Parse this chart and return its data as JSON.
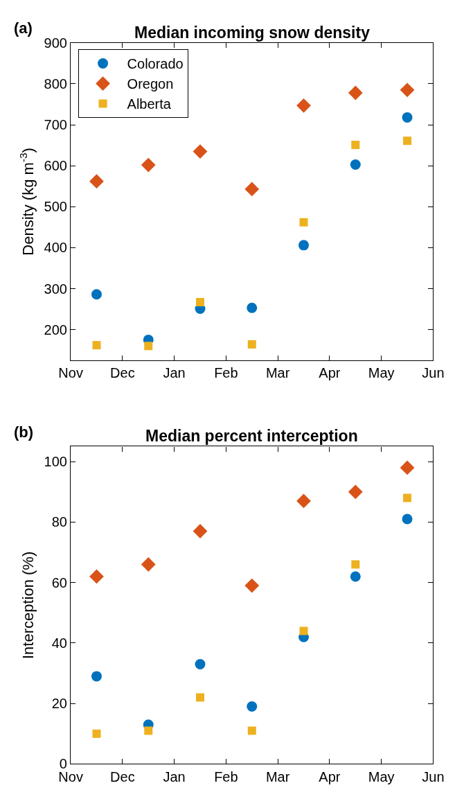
{
  "chart_data": [
    {
      "type": "scatter",
      "title": "Median incoming snow density",
      "ylabel": "Density (kg m$^{-3}$)",
      "annotations": [
        "(a)"
      ],
      "categories": [
        "Nov",
        null,
        "Dec",
        null,
        "Jan",
        null,
        "Feb",
        null,
        "Mar",
        null,
        "Apr",
        null,
        "May",
        null,
        "Jun"
      ],
      "ylim": [
        125,
        900
      ],
      "yticks": [
        200,
        300,
        400,
        500,
        600,
        700,
        800,
        900
      ],
      "grid": false,
      "legend": "top left",
      "series": [
        {
          "name": "Colorado",
          "color": "#0072bd",
          "marker": "circle",
          "values": [
            null,
            286,
            null,
            175,
            null,
            251,
            null,
            253,
            null,
            406,
            null,
            603,
            null,
            718,
            null
          ]
        },
        {
          "name": "Oregon",
          "color": "#d95319",
          "marker": "diamond",
          "values": [
            null,
            562,
            null,
            602,
            null,
            635,
            null,
            543,
            null,
            747,
            null,
            778,
            null,
            785,
            null
          ]
        },
        {
          "name": "Alberta",
          "color": "#edb120",
          "marker": "square",
          "values": [
            null,
            162,
            null,
            160,
            null,
            267,
            null,
            164,
            null,
            462,
            null,
            651,
            null,
            661,
            null
          ]
        }
      ]
    },
    {
      "type": "scatter",
      "title": "Median percent interception",
      "ylabel": "Interception (%)",
      "annotations": [
        "(b)"
      ],
      "categories": [
        "Nov",
        null,
        "Dec",
        null,
        "Jan",
        null,
        "Feb",
        null,
        "Mar",
        null,
        "Apr",
        null,
        "May",
        null,
        "Jun"
      ],
      "ylim": [
        0,
        105
      ],
      "yticks": [
        0,
        20,
        40,
        60,
        80,
        100
      ],
      "grid": false,
      "legend": false,
      "series": [
        {
          "color": "#0072bd",
          "marker": "circle",
          "values": [
            null,
            29,
            null,
            13,
            null,
            33,
            null,
            19,
            null,
            42,
            null,
            62,
            null,
            81,
            null
          ]
        },
        {
          "color": "#d95319",
          "marker": "diamond",
          "values": [
            null,
            62,
            null,
            66,
            null,
            77,
            null,
            59,
            null,
            87,
            null,
            90,
            null,
            98,
            null
          ]
        },
        {
          "color": "#edb120",
          "marker": "square",
          "values": [
            null,
            10,
            null,
            11,
            null,
            22,
            null,
            11,
            null,
            44,
            null,
            66,
            null,
            88,
            null
          ]
        }
      ]
    }
  ]
}
